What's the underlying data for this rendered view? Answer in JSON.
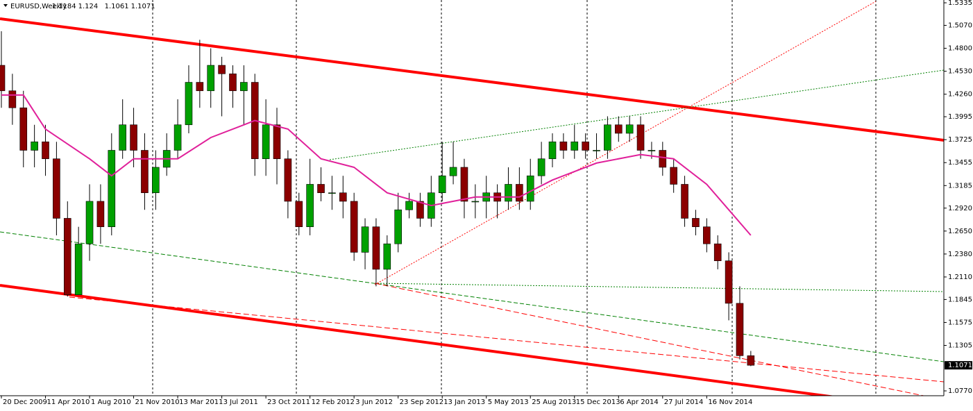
{
  "chart_data": {
    "type": "candlestick",
    "symbol": "EURUSD,Weekly",
    "ohlc": [
      1.1184,
      1.124,
      1.1061,
      1.1071
    ],
    "last_price": 1.1071,
    "up_color": "#00a000",
    "down_color": "#8b0000",
    "ma_color": "#e0209a",
    "ylim": [
      1.0713,
      1.5368
    ],
    "yticks": [
      1.5335,
      {
        "value": 1.507,
        "label": "1.5070"
      },
      {
        "value": 1.48,
        "label": "1.4800"
      },
      {
        "value": 1.453,
        "label": "1.4530"
      },
      {
        "value": 1.426,
        "label": "1.4260"
      },
      1.3995,
      1.3725,
      1.3455,
      1.3185,
      {
        "value": 1.292,
        "label": "1.2920"
      },
      {
        "value": 1.265,
        "label": "1.2650"
      },
      {
        "value": 1.238,
        "label": "1.2380"
      },
      {
        "value": 1.211,
        "label": "1.2110"
      },
      1.1845,
      1.1575,
      1.1305,
      {
        "value": 1.077,
        "label": "1.0770"
      }
    ],
    "categories": [
      "20 Dec 2009",
      "11 Apr 2010",
      "1 Aug 2010",
      "21 Nov 2010",
      "13 Mar 2011",
      "3 Jul 2011",
      "23 Oct 2011",
      "12 Feb 2012",
      "3 Jun 2012",
      "23 Sep 2012",
      "13 Jan 2013",
      "5 May 2013",
      "25 Aug 2013",
      "15 Dec 2013",
      "6 Apr 2014",
      "27 Jul 2014",
      "16 Nov 2014"
    ],
    "candles": {
      "x": [
        "20 Dec 2009",
        "17 Jan 2010",
        "14 Feb 2010",
        "14 Mar 2010",
        "11 Apr 2010",
        "9 May 2010",
        "6 Jun 2010",
        "4 Jul 2010",
        "1 Aug 2010",
        "29 Aug 2010",
        "26 Sep 2010",
        "24 Oct 2010",
        "21 Nov 2010",
        "19 Dec 2010",
        "16 Jan 2011",
        "13 Feb 2011",
        "13 Mar 2011",
        "10 Apr 2011",
        "8 May 2011",
        "5 Jun 2011",
        "3 Jul 2011",
        "31 Jul 2011",
        "28 Aug 2011",
        "25 Sep 2011",
        "23 Oct 2011",
        "20 Nov 2011",
        "18 Dec 2011",
        "15 Jan 2012",
        "12 Feb 2012",
        "11 Mar 2012",
        "8 Apr 2012",
        "6 May 2012",
        "3 Jun 2012",
        "1 Jul 2012",
        "29 Jul 2012",
        "26 Aug 2012",
        "23 Sep 2012",
        "21 Oct 2012",
        "18 Nov 2012",
        "16 Dec 2012",
        "13 Jan 2013",
        "10 Feb 2013",
        "10 Mar 2013",
        "7 Apr 2013",
        "5 May 2013",
        "2 Jun 2013",
        "30 Jun 2013",
        "28 Jul 2013",
        "25 Aug 2013",
        "22 Sep 2013",
        "20 Oct 2013",
        "17 Nov 2013",
        "15 Dec 2013",
        "12 Jan 2014",
        "9 Feb 2014",
        "9 Mar 2014",
        "6 Apr 2014",
        "4 May 2014",
        "1 Jun 2014",
        "29 Jun 2014",
        "27 Jul 2014",
        "24 Aug 2014",
        "21 Sep 2014",
        "19 Oct 2014",
        "16 Nov 2014",
        "14 Dec 2014",
        "11 Jan 2015",
        "8 Feb 2015",
        "8 Mar 2015"
      ],
      "open": [
        1.46,
        1.43,
        1.41,
        1.36,
        1.37,
        1.35,
        1.28,
        1.19,
        1.25,
        1.3,
        1.27,
        1.36,
        1.39,
        1.36,
        1.31,
        1.34,
        1.36,
        1.39,
        1.44,
        1.43,
        1.46,
        1.45,
        1.43,
        1.44,
        1.35,
        1.39,
        1.35,
        1.3,
        1.27,
        1.32,
        1.31,
        1.31,
        1.3,
        1.24,
        1.27,
        1.22,
        1.25,
        1.29,
        1.3,
        1.28,
        1.31,
        1.33,
        1.34,
        1.3,
        1.3,
        1.31,
        1.3,
        1.32,
        1.3,
        1.33,
        1.35,
        1.37,
        1.36,
        1.37,
        1.36,
        1.36,
        1.39,
        1.38,
        1.39,
        1.36,
        1.36,
        1.34,
        1.32,
        1.28,
        1.27,
        1.25,
        1.23,
        1.18,
        1.1184
      ],
      "high": [
        1.5,
        1.45,
        1.43,
        1.39,
        1.39,
        1.37,
        1.3,
        1.27,
        1.32,
        1.32,
        1.38,
        1.42,
        1.41,
        1.38,
        1.36,
        1.38,
        1.42,
        1.46,
        1.49,
        1.48,
        1.47,
        1.46,
        1.46,
        1.45,
        1.42,
        1.41,
        1.36,
        1.31,
        1.35,
        1.34,
        1.33,
        1.33,
        1.31,
        1.28,
        1.28,
        1.26,
        1.31,
        1.31,
        1.31,
        1.33,
        1.37,
        1.37,
        1.35,
        1.32,
        1.33,
        1.32,
        1.34,
        1.34,
        1.35,
        1.37,
        1.38,
        1.38,
        1.39,
        1.38,
        1.38,
        1.4,
        1.4,
        1.4,
        1.4,
        1.37,
        1.37,
        1.35,
        1.33,
        1.29,
        1.28,
        1.26,
        1.24,
        1.2,
        1.124
      ],
      "low": [
        1.41,
        1.39,
        1.34,
        1.34,
        1.33,
        1.26,
        1.188,
        1.19,
        1.23,
        1.25,
        1.26,
        1.35,
        1.34,
        1.29,
        1.29,
        1.33,
        1.35,
        1.38,
        1.41,
        1.41,
        1.4,
        1.41,
        1.39,
        1.33,
        1.33,
        1.32,
        1.28,
        1.26,
        1.26,
        1.3,
        1.29,
        1.28,
        1.23,
        1.22,
        1.2,
        1.2,
        1.24,
        1.28,
        1.27,
        1.27,
        1.3,
        1.32,
        1.28,
        1.28,
        1.28,
        1.28,
        1.29,
        1.29,
        1.29,
        1.32,
        1.34,
        1.35,
        1.35,
        1.35,
        1.35,
        1.35,
        1.37,
        1.37,
        1.35,
        1.35,
        1.33,
        1.31,
        1.27,
        1.26,
        1.24,
        1.22,
        1.16,
        1.114,
        1.1061
      ],
      "close": [
        1.43,
        1.41,
        1.36,
        1.37,
        1.35,
        1.28,
        1.19,
        1.25,
        1.3,
        1.27,
        1.36,
        1.39,
        1.36,
        1.31,
        1.34,
        1.36,
        1.39,
        1.44,
        1.43,
        1.46,
        1.45,
        1.43,
        1.44,
        1.35,
        1.39,
        1.35,
        1.3,
        1.27,
        1.32,
        1.31,
        1.31,
        1.3,
        1.24,
        1.27,
        1.22,
        1.25,
        1.29,
        1.3,
        1.28,
        1.31,
        1.33,
        1.34,
        1.3,
        1.3,
        1.31,
        1.3,
        1.32,
        1.3,
        1.33,
        1.35,
        1.37,
        1.36,
        1.37,
        1.36,
        1.36,
        1.39,
        1.38,
        1.39,
        1.36,
        1.36,
        1.34,
        1.32,
        1.28,
        1.27,
        1.25,
        1.23,
        1.18,
        1.1184,
        1.1071
      ]
    },
    "ma": {
      "x": [
        "20 Dec 2009",
        "14 Feb 2010",
        "11 Apr 2010",
        "1 Aug 2010",
        "26 Sep 2010",
        "21 Nov 2010",
        "13 Mar 2011",
        "5 Jun 2011",
        "28 Aug 2011",
        "25 Sep 2011",
        "18 Dec 2011",
        "11 Mar 2012",
        "3 Jun 2012",
        "26 Aug 2012",
        "16 Dec 2012",
        "7 Apr 2013",
        "28 Jul 2013",
        "20 Oct 2013",
        "9 Feb 2014",
        "1 Jun 2014",
        "24 Aug 2014",
        "16 Nov 2014",
        "11 Jan 2015",
        "8 Mar 2015"
      ],
      "values": [
        1.425,
        1.425,
        1.385,
        1.35,
        1.33,
        1.35,
        1.35,
        1.375,
        1.39,
        1.395,
        1.385,
        1.35,
        1.34,
        1.31,
        1.295,
        1.305,
        1.305,
        1.325,
        1.345,
        1.355,
        1.35,
        1.32,
        1.29,
        1.26
      ]
    }
  }
}
